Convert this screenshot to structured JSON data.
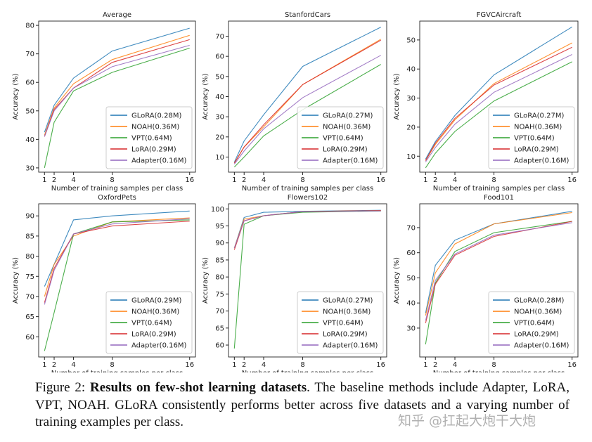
{
  "chart_data": [
    {
      "type": "line",
      "title": "Average",
      "xlabel": "Number of training samples per class",
      "ylabel": "Accuracy (%)",
      "x": [
        1,
        2,
        4,
        8,
        16
      ],
      "xlim": [
        0.4,
        16.6
      ],
      "xticks": [
        1,
        2,
        4,
        8,
        16
      ],
      "ylim": [
        28.5,
        81.5
      ],
      "yticks": [
        30,
        40,
        50,
        60,
        70,
        80
      ],
      "legend": "lower right",
      "series": [
        {
          "name": "GLoRA(0.28M)",
          "color": "#1f77b4",
          "values": [
            42.5,
            52,
            61.5,
            71,
            79
          ]
        },
        {
          "name": "NOAH(0.36M)",
          "color": "#ff7f0e",
          "values": [
            41.5,
            51,
            59.5,
            68,
            76.5
          ]
        },
        {
          "name": "VPT(0.64M)",
          "color": "#2ca02c",
          "values": [
            30,
            46,
            57,
            63.5,
            72
          ]
        },
        {
          "name": "LoRA(0.29M)",
          "color": "#d62728",
          "values": [
            41,
            50.5,
            58,
            67,
            75
          ]
        },
        {
          "name": "Adapter(0.16M)",
          "color": "#9467bd",
          "values": [
            41,
            50,
            58,
            65.5,
            73
          ]
        }
      ]
    },
    {
      "type": "line",
      "title": "StanfordCars",
      "xlabel": "Number of training samples per class",
      "ylabel": "Accuracy (%)",
      "x": [
        1,
        2,
        4,
        8,
        16
      ],
      "xlim": [
        0.4,
        16.6
      ],
      "xticks": [
        1,
        2,
        4,
        8,
        16
      ],
      "ylim": [
        2.5,
        77.5
      ],
      "yticks": [
        10,
        20,
        30,
        40,
        50,
        60,
        70
      ],
      "legend": "lower right",
      "series": [
        {
          "name": "GLoRA(0.27M)",
          "color": "#1f77b4",
          "values": [
            7.5,
            18,
            31,
            55,
            74.5
          ]
        },
        {
          "name": "NOAH(0.36M)",
          "color": "#ff7f0e",
          "values": [
            7,
            15,
            25,
            46,
            68.5
          ]
        },
        {
          "name": "VPT(0.64M)",
          "color": "#2ca02c",
          "values": [
            5,
            10,
            20.5,
            33.5,
            56
          ]
        },
        {
          "name": "LoRA(0.29M)",
          "color": "#d62728",
          "values": [
            7,
            15,
            26,
            46,
            68
          ]
        },
        {
          "name": "Adapter(0.16M)",
          "color": "#9467bd",
          "values": [
            6.5,
            13,
            24,
            39.5,
            60.5
          ]
        }
      ]
    },
    {
      "type": "line",
      "title": "FGVCAircraft",
      "xlabel": "Number of training samples per class",
      "ylabel": "Accuracy (%)",
      "x": [
        1,
        2,
        4,
        8,
        16
      ],
      "xlim": [
        0.4,
        16.6
      ],
      "xticks": [
        1,
        2,
        4,
        8,
        16
      ],
      "ylim": [
        4.5,
        56.5
      ],
      "yticks": [
        10,
        20,
        30,
        40,
        50
      ],
      "legend": "lower right",
      "series": [
        {
          "name": "GLoRA(0.27M)",
          "color": "#1f77b4",
          "values": [
            9,
            15,
            24,
            38,
            54.5
          ]
        },
        {
          "name": "NOAH(0.36M)",
          "color": "#ff7f0e",
          "values": [
            8.5,
            14,
            22.5,
            35,
            49
          ]
        },
        {
          "name": "VPT(0.64M)",
          "color": "#2ca02c",
          "values": [
            6,
            11,
            18.5,
            29,
            42.5
          ]
        },
        {
          "name": "LoRA(0.29M)",
          "color": "#d62728",
          "values": [
            8.5,
            14.5,
            23,
            34.5,
            47.5
          ]
        },
        {
          "name": "Adapter(0.16M)",
          "color": "#9467bd",
          "values": [
            8,
            13,
            21,
            32,
            45
          ]
        }
      ]
    },
    {
      "type": "line",
      "title": "OxfordPets",
      "xlabel": "Number of training samples per class",
      "ylabel": "Accuracy (%)",
      "x": [
        1,
        2,
        4,
        8,
        16
      ],
      "xlim": [
        0.4,
        16.6
      ],
      "xticks": [
        1,
        2,
        4,
        8,
        16
      ],
      "ylim": [
        55,
        93
      ],
      "yticks": [
        60,
        65,
        70,
        75,
        80,
        85,
        90
      ],
      "legend": "lower right",
      "series": [
        {
          "name": "GLoRA(0.29M)",
          "color": "#1f77b4",
          "values": [
            72.5,
            78,
            89,
            90,
            91.2
          ]
        },
        {
          "name": "NOAH(0.36M)",
          "color": "#ff7f0e",
          "values": [
            70,
            78,
            85,
            88.5,
            89.5
          ]
        },
        {
          "name": "VPT(0.64M)",
          "color": "#2ca02c",
          "values": [
            56.5,
            66,
            85.5,
            88.5,
            89
          ]
        },
        {
          "name": "LoRA(0.29M)",
          "color": "#d62728",
          "values": [
            68.5,
            77,
            85.5,
            87.5,
            88.7
          ]
        },
        {
          "name": "Adapter(0.16M)",
          "color": "#9467bd",
          "values": [
            68,
            76.5,
            85.5,
            88,
            89.3
          ]
        }
      ]
    },
    {
      "type": "line",
      "title": "Flowers102",
      "xlabel": "Number of training samples per class",
      "ylabel": "Accuracy (%)",
      "x": [
        1,
        2,
        4,
        8,
        16
      ],
      "xlim": [
        0.4,
        16.6
      ],
      "xticks": [
        1,
        2,
        4,
        8,
        16
      ],
      "ylim": [
        56.5,
        101.5
      ],
      "yticks": [
        60,
        65,
        70,
        75,
        80,
        85,
        90,
        95,
        100
      ],
      "legend": "lower right",
      "series": [
        {
          "name": "GLoRA(0.27M)",
          "color": "#1f77b4",
          "values": [
            88.5,
            97.5,
            99,
            99.3,
            99.6
          ]
        },
        {
          "name": "NOAH(0.36M)",
          "color": "#ff7f0e",
          "values": [
            88.5,
            97,
            98,
            99.2,
            99.5
          ]
        },
        {
          "name": "VPT(0.64M)",
          "color": "#2ca02c",
          "values": [
            59,
            95.5,
            98,
            99,
            99.4
          ]
        },
        {
          "name": "LoRA(0.29M)",
          "color": "#d62728",
          "values": [
            88,
            96.5,
            98,
            99.2,
            99.5
          ]
        },
        {
          "name": "Adapter(0.16M)",
          "color": "#9467bd",
          "values": [
            88.5,
            96.5,
            98,
            99.2,
            99.4
          ]
        }
      ]
    },
    {
      "type": "line",
      "title": "Food101",
      "xlabel": "Number of training samples per class",
      "ylabel": "Accuracy (%)",
      "x": [
        1,
        2,
        4,
        8,
        16
      ],
      "xlim": [
        0.4,
        16.6
      ],
      "xticks": [
        1,
        2,
        4,
        8,
        16
      ],
      "ylim": [
        18.5,
        79.5
      ],
      "yticks": [
        30,
        40,
        50,
        60,
        70
      ],
      "legend": "lower right",
      "series": [
        {
          "name": "GLoRA(0.28M)",
          "color": "#1f77b4",
          "values": [
            36,
            55,
            65,
            71.5,
            76.5
          ]
        },
        {
          "name": "NOAH(0.36M)",
          "color": "#ff7f0e",
          "values": [
            35,
            52,
            63.5,
            71.5,
            76
          ]
        },
        {
          "name": "VPT(0.64M)",
          "color": "#2ca02c",
          "values": [
            23.5,
            48,
            60.5,
            68,
            72.5
          ]
        },
        {
          "name": "LoRA(0.29M)",
          "color": "#d62728",
          "values": [
            32,
            47.5,
            59,
            66.5,
            72.5
          ]
        },
        {
          "name": "Adapter(0.16M)",
          "color": "#9467bd",
          "values": [
            33,
            49,
            59.5,
            67,
            72
          ]
        }
      ]
    }
  ],
  "caption": {
    "label": "Figure 2: ",
    "bold": "Results on few-shot learning datasets",
    "text": ". The baseline methods include Adapter, LoRA, VPT, NOAH. GLoRA consistently performs better across five datasets and a varying number of training examples per class."
  },
  "watermark": "知乎 @扛起大炮干大炮"
}
